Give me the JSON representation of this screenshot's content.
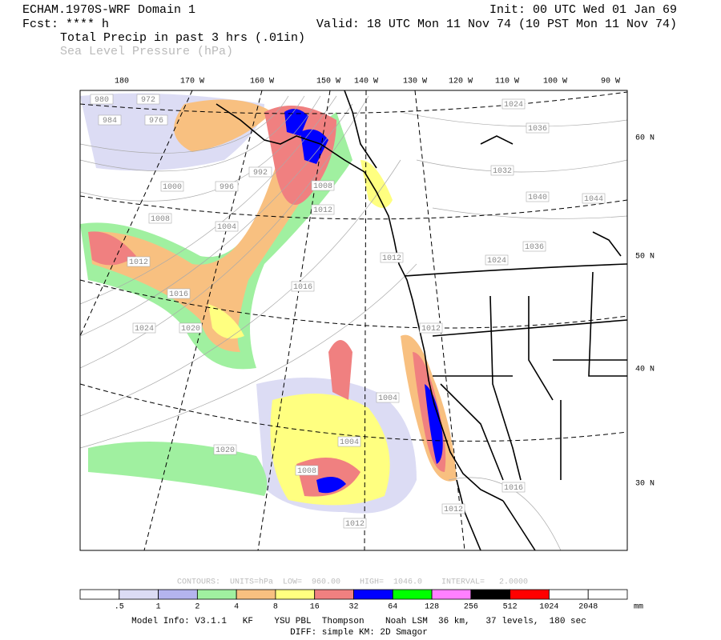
{
  "header": {
    "title": "ECHAM.1970S-WRF Domain 1",
    "forecast": "Fcst: **** h",
    "init": "Init: 00 UTC Wed 01 Jan 69",
    "valid": "Valid: 18 UTC Mon 11 Nov 74 (10 PST Mon 11 Nov 74)",
    "field1": "Total Precip in past 3 hrs (.01in)",
    "field2": "Sea Level Pressure (hPa)"
  },
  "map": {
    "longitude_labels": [
      "180",
      "170 W",
      "160 W",
      "150 W",
      "140 W",
      "130 W",
      "120 W",
      "110 W",
      "100 W",
      "90 W"
    ],
    "latitude_labels": [
      "60 N",
      "50 N",
      "40 N",
      "30 N"
    ],
    "contour_labels": [
      "980",
      "972",
      "984",
      "976",
      "992",
      "1000",
      "996",
      "1008",
      "1004",
      "1008",
      "1012",
      "1012",
      "1016",
      "1016",
      "1024",
      "1020",
      "1020",
      "1004",
      "1004",
      "1008",
      "1012",
      "1012",
      "1016",
      "1012",
      "1012",
      "1024",
      "1036",
      "1032",
      "1040",
      "1044",
      "1036",
      "1024"
    ]
  },
  "contour_info": "CONTOURS:  UNITS=hPa  LOW=  960.00    HIGH=  1046.0    INTERVAL=   2.0000",
  "colorbar": {
    "labels": [
      ".5",
      "1",
      "2",
      "4",
      "8",
      "16",
      "32",
      "64",
      "128",
      "256",
      "512",
      "1024",
      "2048"
    ],
    "unit": "mm",
    "colors": [
      "#ffffff",
      "#dcdcf4",
      "#b4b4ee",
      "#a0f0a0",
      "#f8c080",
      "#ffff80",
      "#f08080",
      "#0000ff",
      "#00ff00",
      "#ff80ff",
      "#000000",
      "#ff0000",
      "#ffffff",
      "#ffffff"
    ]
  },
  "footer": {
    "model_info": "Model Info: V3.1.1   KF    YSU PBL  Thompson    Noah LSM  36 km,   37 levels,  180 sec",
    "diff": "DIFF: simple KM: 2D Smagor"
  }
}
